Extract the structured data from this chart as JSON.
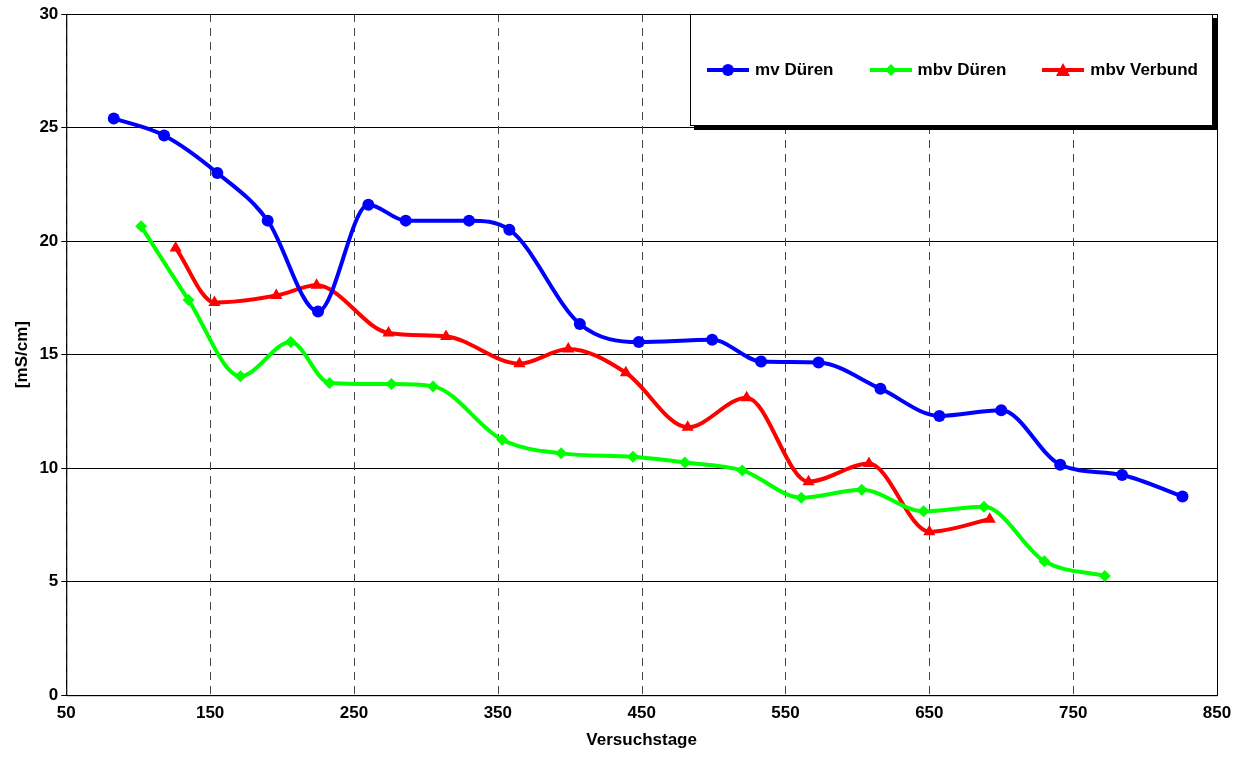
{
  "chart_data": {
    "type": "line",
    "xlabel": "Versuchstage",
    "ylabel": "[mS/cm]",
    "xlim": [
      50,
      850
    ],
    "xticks": [
      50,
      150,
      250,
      350,
      450,
      550,
      650,
      750,
      850
    ],
    "ylim": [
      0,
      30
    ],
    "yticks": [
      0,
      5,
      10,
      15,
      20,
      25,
      30
    ],
    "grid": true,
    "legend": "top right",
    "line_style": "solid",
    "series": [
      {
        "name": "mv Düren",
        "color": "#0000ff",
        "marker": "circle",
        "x": [
          83,
          118,
          155,
          190,
          225,
          260,
          286,
          330,
          358,
          407,
          448,
          499,
          533,
          573,
          616,
          657,
          700,
          741,
          784,
          826
        ],
        "values": [
          25.4,
          24.65,
          23.0,
          20.9,
          16.9,
          21.6,
          20.9,
          20.9,
          20.5,
          16.35,
          15.55,
          15.65,
          14.7,
          14.65,
          13.5,
          12.3,
          12.55,
          10.15,
          9.7,
          8.75
        ]
      },
      {
        "name": "mbv Düren",
        "color": "#00ff00",
        "marker": "diamond",
        "x": [
          102,
          135,
          171,
          206,
          233,
          276,
          305,
          353,
          394,
          444,
          480,
          520,
          561,
          603,
          646,
          688,
          730,
          772
        ],
        "values": [
          20.65,
          17.4,
          14.05,
          15.55,
          13.75,
          13.7,
          13.6,
          11.25,
          10.65,
          10.5,
          10.25,
          9.9,
          8.7,
          9.05,
          8.1,
          8.3,
          5.9,
          5.25
        ]
      },
      {
        "name": "mbv Verbund",
        "color": "#ff0000",
        "marker": "triangle",
        "x": [
          126,
          153,
          196,
          224,
          274,
          314,
          365,
          399,
          439,
          482,
          523,
          566,
          608,
          650,
          692
        ],
        "values": [
          19.7,
          17.3,
          17.6,
          18.05,
          15.95,
          15.8,
          14.6,
          15.25,
          14.2,
          11.8,
          13.1,
          9.4,
          10.2,
          7.2,
          7.75
        ]
      }
    ]
  }
}
